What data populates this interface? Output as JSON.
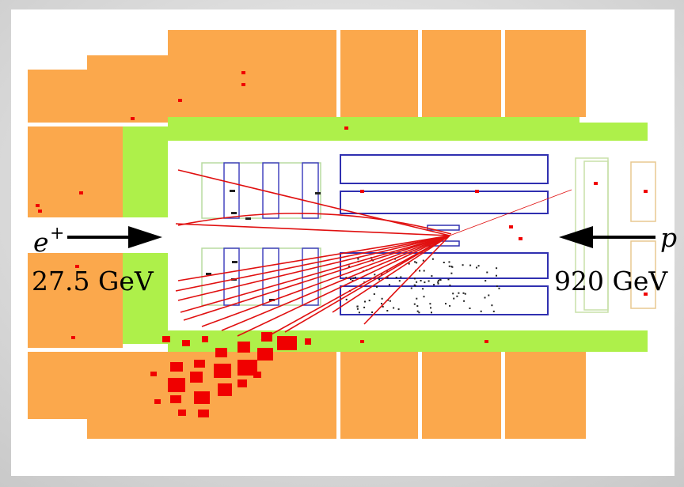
{
  "labels": {
    "beam_left_particle": "e",
    "beam_left_charge": "+",
    "beam_left_energy": "27.5 GeV",
    "beam_right_particle": "p",
    "beam_right_energy": "920 GeV"
  }
}
